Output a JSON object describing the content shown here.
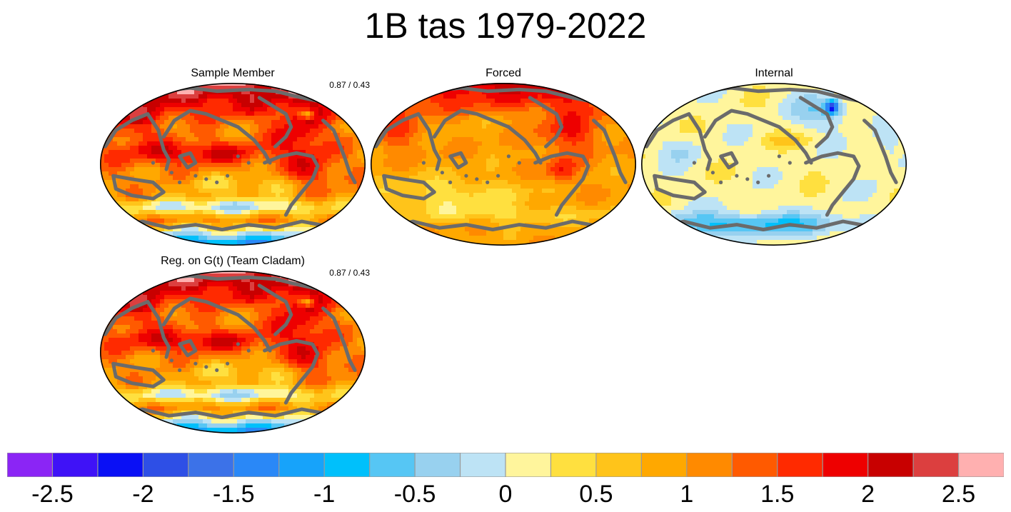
{
  "figure": {
    "title": "1B tas 1979-2022"
  },
  "panels": [
    {
      "id": "sample",
      "title": "Sample Member",
      "stat": "0.87 / 0.43",
      "field": "warm"
    },
    {
      "id": "forced",
      "title": "Forced",
      "stat": "",
      "field": "forced"
    },
    {
      "id": "internal",
      "title": "Internal",
      "stat": "",
      "field": "internal"
    },
    {
      "id": "reg",
      "title": "Reg. on G(t) (Team Cladam)",
      "stat": "0.87 / 0.43",
      "field": "warm"
    }
  ],
  "colorbar": {
    "colors": [
      "#8b25f5",
      "#3f12f7",
      "#0a10f5",
      "#2e4fe6",
      "#3c72e8",
      "#2a88f7",
      "#17a3fa",
      "#00c0fb",
      "#56c6f4",
      "#98d1ef",
      "#bde3f5",
      "#fff59c",
      "#ffe03f",
      "#ffc41a",
      "#ffa800",
      "#ff8a00",
      "#ff5a00",
      "#ff2a00",
      "#ee0000",
      "#c80000",
      "#dc3f3f",
      "#ffb0b0"
    ],
    "tick_labels": [
      "-2.5",
      "-2",
      "-1.5",
      "-1",
      "-0.5",
      "0",
      "0.5",
      "1",
      "1.5",
      "2",
      "2.5"
    ]
  },
  "colors": {
    "coastline": "#6b6b6b",
    "outline": "#000000"
  }
}
